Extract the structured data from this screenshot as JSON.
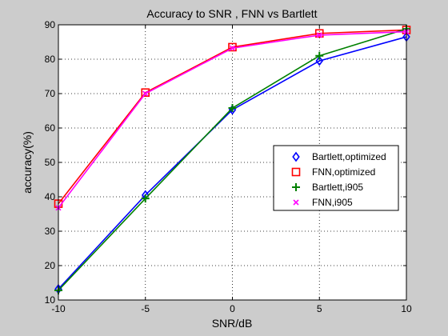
{
  "chart_data": {
    "type": "line",
    "title": "Accuracy to SNR , FNN vs Bartlett",
    "xlabel": "SNR/dB",
    "ylabel": "accuracy(%)",
    "xlim": [
      -10,
      10
    ],
    "ylim": [
      10,
      90
    ],
    "xticks": [
      -10,
      -5,
      0,
      5,
      10
    ],
    "yticks": [
      10,
      20,
      30,
      40,
      50,
      60,
      70,
      80,
      90
    ],
    "xtick_labels": [
      "-10",
      "-5",
      "0",
      "5",
      "10"
    ],
    "ytick_labels": [
      "10",
      "20",
      "30",
      "40",
      "50",
      "60",
      "70",
      "80",
      "90"
    ],
    "grid": true,
    "legend_position": "right",
    "x": [
      -10,
      -5,
      0,
      5,
      10
    ],
    "series": [
      {
        "name": "Bartlett,optimized",
        "values": [
          13.2,
          40.5,
          65.3,
          79.5,
          86.5
        ],
        "color": "#0000ff",
        "marker": "diamond"
      },
      {
        "name": "FNN,optimized",
        "values": [
          38.0,
          70.3,
          83.5,
          87.5,
          88.5
        ],
        "color": "#ff0000",
        "marker": "square"
      },
      {
        "name": "Bartlett,i905",
        "values": [
          12.8,
          39.5,
          65.8,
          81.0,
          88.8
        ],
        "color": "#008000",
        "marker": "plus"
      },
      {
        "name": "FNN,i905",
        "values": [
          36.8,
          70.0,
          83.2,
          87.0,
          88.0
        ],
        "color": "#ff00ff",
        "marker": "x"
      }
    ]
  }
}
